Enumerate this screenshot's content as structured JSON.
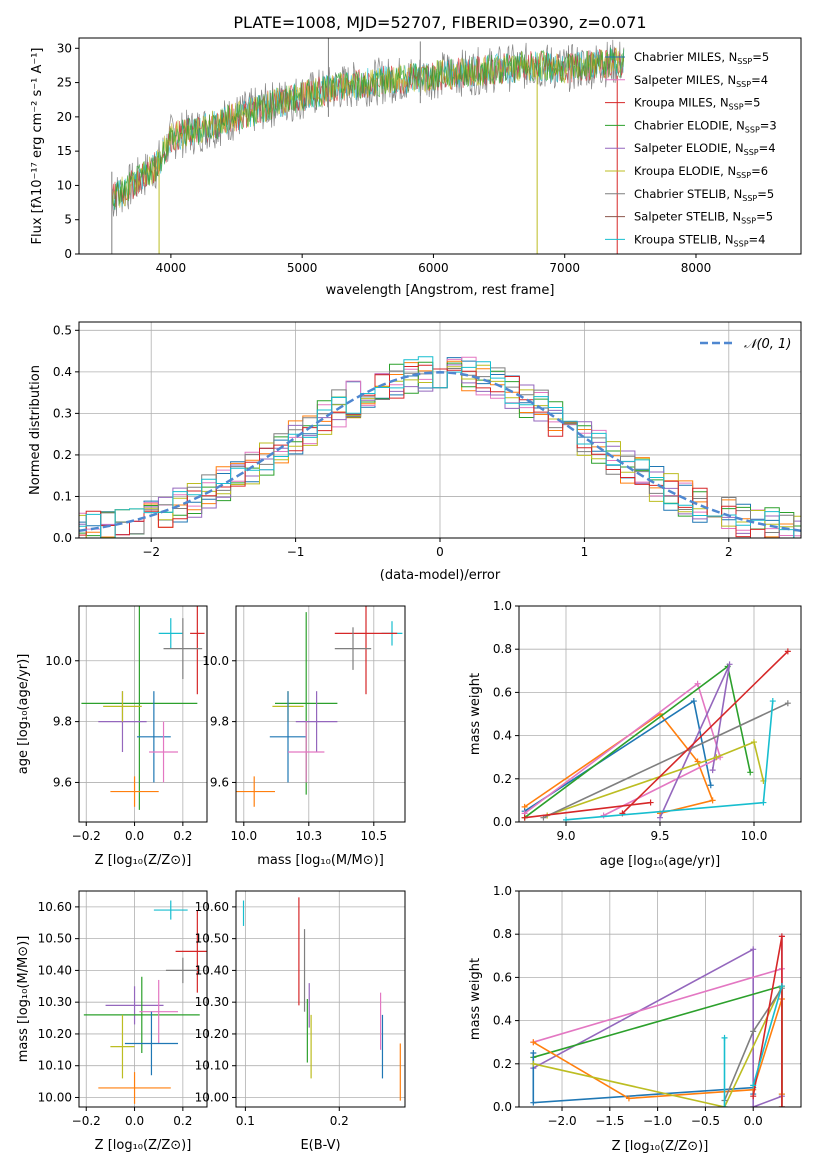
{
  "chart_data": [
    {
      "id": "spectrum",
      "type": "line",
      "title": "PLATE=1008, MJD=52707, FIBERID=0390, z=0.071",
      "xlabel": "wavelength [Angstrom, rest frame]",
      "ylabel": "Flux [fλ10⁻¹⁷ erg cm⁻² s⁻¹ A⁻¹]",
      "xlim": [
        3300,
        8800
      ],
      "ylim": [
        0,
        31.5
      ],
      "xticks": [
        4000,
        5000,
        6000,
        7000,
        8000
      ],
      "yticks": [
        0,
        5,
        10,
        15,
        20,
        25,
        30
      ],
      "grid": false,
      "legend_position": "upper-right",
      "legend": [
        {
          "name": "Chabrier MILES, N",
          "sub": "SSP",
          "suffix": "=5",
          "color": "#1f77b4"
        },
        {
          "name": "Salpeter MILES, N",
          "sub": "SSP",
          "suffix": "=4",
          "color": "#e377c2"
        },
        {
          "name": "Kroupa MILES, N",
          "sub": "SSP",
          "suffix": "=5",
          "color": "#d62728"
        },
        {
          "name": "Chabrier ELODIE, N",
          "sub": "SSP",
          "suffix": "=3",
          "color": "#2ca02c"
        },
        {
          "name": "Salpeter ELODIE, N",
          "sub": "SSP",
          "suffix": "=4",
          "color": "#9467bd"
        },
        {
          "name": "Kroupa ELODIE, N",
          "sub": "SSP",
          "suffix": "=6",
          "color": "#bcbd22"
        },
        {
          "name": "Chabrier STELIB, N",
          "sub": "SSP",
          "suffix": "=5",
          "color": "#7f7f7f"
        },
        {
          "name": "Salpeter STELIB, N",
          "sub": "SSP",
          "suffix": "=5",
          "color": "#8c564b"
        },
        {
          "name": "Kroupa STELIB, N",
          "sub": "SSP",
          "suffix": "=4",
          "color": "#17becf"
        }
      ],
      "series_note": "data spectrum (grey) and model spectra",
      "trend": {
        "x": [
          3550,
          3700,
          3900,
          4000,
          4200,
          4500,
          4800,
          5000,
          5200,
          5500,
          6000,
          6500,
          6800,
          7000,
          7200,
          7400
        ],
        "y": [
          8,
          10,
          13,
          17,
          18,
          20,
          22,
          23,
          24,
          25,
          26,
          27,
          27.5,
          27,
          27.5,
          28
        ]
      },
      "spikes": [
        {
          "x": 3550,
          "y0": 0,
          "y1": 12
        },
        {
          "x": 3910,
          "y0": 0,
          "y1": 14
        },
        {
          "x": 5200,
          "y0": 20,
          "y1": 31.5
        },
        {
          "x": 5900,
          "y0": 22,
          "y1": 31
        },
        {
          "x": 6790,
          "y0": 0,
          "y1": 26
        },
        {
          "x": 7400,
          "y0": 0,
          "y1": 26
        }
      ]
    },
    {
      "id": "residuals",
      "type": "line",
      "xlabel": "(data-model)/error",
      "ylabel": "Normed distribution",
      "xlim": [
        -2.5,
        2.5
      ],
      "ylim": [
        0,
        0.52
      ],
      "xticks": [
        -2,
        -1,
        0,
        1,
        2
      ],
      "yticks": [
        0.0,
        0.1,
        0.2,
        0.3,
        0.4,
        0.5
      ],
      "grid": true,
      "legend_position": "upper-right",
      "legend": [
        {
          "name": "𝒩(0, 1)",
          "color": "#4f87d0",
          "dashed": true
        }
      ]
    },
    {
      "id": "age-vs-Z",
      "type": "scatter",
      "xlabel": "Z [log₁₀(Z/Z⊙)]",
      "ylabel": "age  [log₁₀(age/yr)]",
      "xlim": [
        -0.23,
        0.3
      ],
      "ylim": [
        9.47,
        10.18
      ],
      "xticks": [
        -0.2,
        0.0,
        0.2
      ],
      "yticks": [
        9.6,
        9.8,
        10.0
      ],
      "grid": true,
      "points": [
        {
          "x": 0.15,
          "y": 10.09,
          "xerr": 0.05,
          "yerr": 0.05,
          "color": "#17becf"
        },
        {
          "x": 0.26,
          "y": 10.09,
          "xerr": 0.03,
          "yerr": 0.2,
          "color": "#d62728"
        },
        {
          "x": 0.2,
          "y": 10.04,
          "xerr": 0.08,
          "yerr": 0.1,
          "color": "#7f7f7f"
        },
        {
          "x": 0.02,
          "y": 9.86,
          "xerr": 0.24,
          "yerr": 0.35,
          "color": "#2ca02c"
        },
        {
          "x": -0.05,
          "y": 9.8,
          "xerr": 0.1,
          "yerr": 0.1,
          "color": "#9467bd"
        },
        {
          "x": -0.05,
          "y": 9.85,
          "xerr": 0.08,
          "yerr": 0.05,
          "color": "#bcbd22"
        },
        {
          "x": 0.08,
          "y": 9.75,
          "xerr": 0.07,
          "yerr": 0.15,
          "color": "#1f77b4"
        },
        {
          "x": 0.12,
          "y": 9.7,
          "xerr": 0.06,
          "yerr": 0.1,
          "color": "#e377c2"
        },
        {
          "x": 0.0,
          "y": 9.57,
          "xerr": 0.1,
          "yerr": 0.05,
          "color": "#ff7f0e"
        }
      ]
    },
    {
      "id": "age-vs-mass",
      "type": "scatter",
      "xlabel": "mass [log₁₀(M/M⊙)]",
      "xlim": [
        9.97,
        10.62
      ],
      "ylim": [
        9.47,
        10.18
      ],
      "xticks": [
        10.0,
        10.25,
        10.5
      ],
      "yticks": [
        9.6,
        9.8,
        10.0
      ],
      "grid": true,
      "points": [
        {
          "x": 10.57,
          "y": 10.09,
          "xerr": 0.04,
          "yerr": 0.04,
          "color": "#17becf"
        },
        {
          "x": 10.47,
          "y": 10.09,
          "xerr": 0.12,
          "yerr": 0.2,
          "color": "#d62728"
        },
        {
          "x": 10.42,
          "y": 10.04,
          "xerr": 0.07,
          "yerr": 0.07,
          "color": "#7f7f7f"
        },
        {
          "x": 10.24,
          "y": 9.86,
          "xerr": 0.12,
          "yerr": 0.3,
          "color": "#2ca02c"
        },
        {
          "x": 10.28,
          "y": 9.8,
          "xerr": 0.08,
          "yerr": 0.1,
          "color": "#9467bd"
        },
        {
          "x": 10.17,
          "y": 9.85,
          "xerr": 0.06,
          "yerr": 0.05,
          "color": "#bcbd22"
        },
        {
          "x": 10.17,
          "y": 9.75,
          "xerr": 0.07,
          "yerr": 0.15,
          "color": "#1f77b4"
        },
        {
          "x": 10.24,
          "y": 9.7,
          "xerr": 0.07,
          "yerr": 0.1,
          "color": "#e377c2"
        },
        {
          "x": 10.04,
          "y": 9.57,
          "xerr": 0.08,
          "yerr": 0.05,
          "color": "#ff7f0e"
        }
      ]
    },
    {
      "id": "mass-weight-vs-age",
      "type": "line",
      "xlabel": "age  [log₁₀(age/yr)]",
      "ylabel": "mass weight",
      "xlim": [
        8.75,
        10.25
      ],
      "ylim": [
        0.0,
        1.0
      ],
      "xticks": [
        9.0,
        9.5,
        10.0
      ],
      "yticks": [
        0.0,
        0.2,
        0.4,
        0.6,
        0.8,
        1.0
      ],
      "grid": true,
      "series": [
        {
          "color": "#ff7f0e",
          "x": [
            8.78,
            9.5,
            9.7,
            9.78,
            9.5
          ],
          "y": [
            0.07,
            0.5,
            0.28,
            0.1,
            0.04
          ]
        },
        {
          "color": "#1f77b4",
          "x": [
            8.78,
            9.68,
            9.77
          ],
          "y": [
            0.05,
            0.56,
            0.17
          ]
        },
        {
          "color": "#e377c2",
          "x": [
            8.78,
            9.7,
            9.82,
            9.2
          ],
          "y": [
            0.04,
            0.64,
            0.3,
            0.03
          ]
        },
        {
          "color": "#2ca02c",
          "x": [
            8.78,
            9.86,
            9.98
          ],
          "y": [
            0.02,
            0.72,
            0.23
          ]
        },
        {
          "color": "#9467bd",
          "x": [
            9.5,
            9.87,
            9.78
          ],
          "y": [
            0.02,
            0.73,
            0.24
          ]
        },
        {
          "color": "#bcbd22",
          "x": [
            8.9,
            9.8,
            10.0,
            10.05
          ],
          "y": [
            0.03,
            0.3,
            0.37,
            0.19
          ]
        },
        {
          "color": "#7f7f7f",
          "x": [
            8.88,
            10.18
          ],
          "y": [
            0.02,
            0.55
          ]
        },
        {
          "color": "#d62728",
          "x": [
            9.3,
            10.18
          ],
          "y": [
            0.04,
            0.79
          ]
        },
        {
          "color": "#d62728",
          "x": [
            8.78,
            9.45
          ],
          "y": [
            0.02,
            0.09
          ]
        },
        {
          "color": "#17becf",
          "x": [
            9.0,
            10.05,
            10.1
          ],
          "y": [
            0.01,
            0.09,
            0.56
          ]
        }
      ]
    },
    {
      "id": "mass-vs-Z",
      "type": "scatter",
      "xlabel": "Z [log₁₀(Z/Z⊙)]",
      "ylabel": "mass [log₁₀(M/M⊙)]",
      "xlim": [
        -0.23,
        0.3
      ],
      "ylim": [
        9.97,
        10.65
      ],
      "xticks": [
        -0.2,
        0.0,
        0.2
      ],
      "yticks": [
        10.0,
        10.1,
        10.2,
        10.3,
        10.4,
        10.5,
        10.6
      ],
      "grid": true,
      "points": [
        {
          "x": 0.15,
          "y": 10.59,
          "xerr": 0.07,
          "yerr": 0.03,
          "color": "#17becf"
        },
        {
          "x": 0.26,
          "y": 10.46,
          "xerr": 0.09,
          "yerr": 0.13,
          "color": "#d62728"
        },
        {
          "x": 0.2,
          "y": 10.4,
          "xerr": 0.07,
          "yerr": 0.04,
          "color": "#7f7f7f"
        },
        {
          "x": 0.0,
          "y": 10.29,
          "xerr": 0.12,
          "yerr": 0.06,
          "color": "#9467bd"
        },
        {
          "x": 0.03,
          "y": 10.26,
          "xerr": 0.24,
          "yerr": 0.12,
          "color": "#2ca02c"
        },
        {
          "x": 0.1,
          "y": 10.27,
          "xerr": 0.08,
          "yerr": 0.1,
          "color": "#e377c2"
        },
        {
          "x": 0.07,
          "y": 10.17,
          "xerr": 0.11,
          "yerr": 0.1,
          "color": "#1f77b4"
        },
        {
          "x": -0.05,
          "y": 10.16,
          "xerr": 0.05,
          "yerr": 0.1,
          "color": "#bcbd22"
        },
        {
          "x": 0.0,
          "y": 10.03,
          "xerr": 0.15,
          "yerr": 0.05,
          "color": "#ff7f0e"
        }
      ]
    },
    {
      "id": "mass-vs-EBV",
      "type": "scatter",
      "xlabel": "E(B-V)",
      "xlim": [
        0.09,
        0.27
      ],
      "ylim": [
        9.97,
        10.65
      ],
      "xticks": [
        0.1,
        0.2
      ],
      "yticks": [
        10.0,
        10.1,
        10.2,
        10.3,
        10.4,
        10.5,
        10.6
      ],
      "grid": true,
      "points": [
        {
          "x": 0.098,
          "y": 10.58,
          "yerr": 0.04,
          "color": "#17becf"
        },
        {
          "x": 0.157,
          "y": 10.46,
          "yerr": 0.17,
          "color": "#d62728"
        },
        {
          "x": 0.163,
          "y": 10.4,
          "yerr": 0.13,
          "color": "#7f7f7f"
        },
        {
          "x": 0.168,
          "y": 10.29,
          "yerr": 0.07,
          "color": "#9467bd"
        },
        {
          "x": 0.166,
          "y": 10.21,
          "yerr": 0.1,
          "color": "#2ca02c"
        },
        {
          "x": 0.244,
          "y": 10.24,
          "yerr": 0.09,
          "color": "#e377c2"
        },
        {
          "x": 0.246,
          "y": 10.16,
          "yerr": 0.1,
          "color": "#1f77b4"
        },
        {
          "x": 0.17,
          "y": 10.16,
          "yerr": 0.1,
          "color": "#bcbd22"
        },
        {
          "x": 0.265,
          "y": 10.08,
          "yerr": 0.09,
          "color": "#ff7f0e"
        }
      ]
    },
    {
      "id": "mass-weight-vs-Z",
      "type": "line",
      "xlabel": "Z [log₁₀(Z/Z⊙)]",
      "ylabel": "mass weight",
      "xlim": [
        -2.45,
        0.5
      ],
      "ylim": [
        0.0,
        1.0
      ],
      "xticks": [
        -2.0,
        -1.5,
        -1.0,
        -0.5,
        0.0
      ],
      "yticks": [
        0.0,
        0.2,
        0.4,
        0.6,
        0.8,
        1.0
      ],
      "grid": true,
      "series": [
        {
          "color": "#9467bd",
          "x": [
            -2.3,
            0.0,
            0.0,
            0.3,
            0.3
          ],
          "y": [
            0.18,
            0.73,
            0.0,
            0.05,
            0.79
          ]
        },
        {
          "color": "#e377c2",
          "x": [
            -2.3,
            0.3,
            0.3
          ],
          "y": [
            0.3,
            0.64,
            0.0
          ]
        },
        {
          "color": "#2ca02c",
          "x": [
            -2.3,
            0.3,
            0.3
          ],
          "y": [
            0.23,
            0.56,
            0.06
          ]
        },
        {
          "color": "#1f77b4",
          "x": [
            -2.3,
            -2.3,
            0.0,
            0.0
          ],
          "y": [
            0.25,
            0.02,
            0.09,
            0.06
          ]
        },
        {
          "color": "#ff7f0e",
          "x": [
            -2.3,
            -1.3,
            0.0,
            0.3,
            0.3
          ],
          "y": [
            0.3,
            0.04,
            0.08,
            0.5,
            0.06
          ]
        },
        {
          "color": "#bcbd22",
          "x": [
            -2.3,
            -0.3,
            0.3,
            0.3
          ],
          "y": [
            0.2,
            0.0,
            0.56,
            0.0
          ]
        },
        {
          "color": "#7f7f7f",
          "x": [
            -0.3,
            0.0,
            0.3,
            0.3
          ],
          "y": [
            0.03,
            0.35,
            0.55,
            0.0
          ]
        },
        {
          "color": "#d62728",
          "x": [
            0.0,
            0.3,
            0.3
          ],
          "y": [
            0.05,
            0.79,
            0.0
          ]
        },
        {
          "color": "#17becf",
          "x": [
            -0.3,
            -0.3
          ],
          "y": [
            0.32,
            0.0
          ]
        },
        {
          "color": "#17becf",
          "x": [
            0.0,
            0.3
          ],
          "y": [
            0.1,
            0.56
          ]
        }
      ]
    }
  ]
}
